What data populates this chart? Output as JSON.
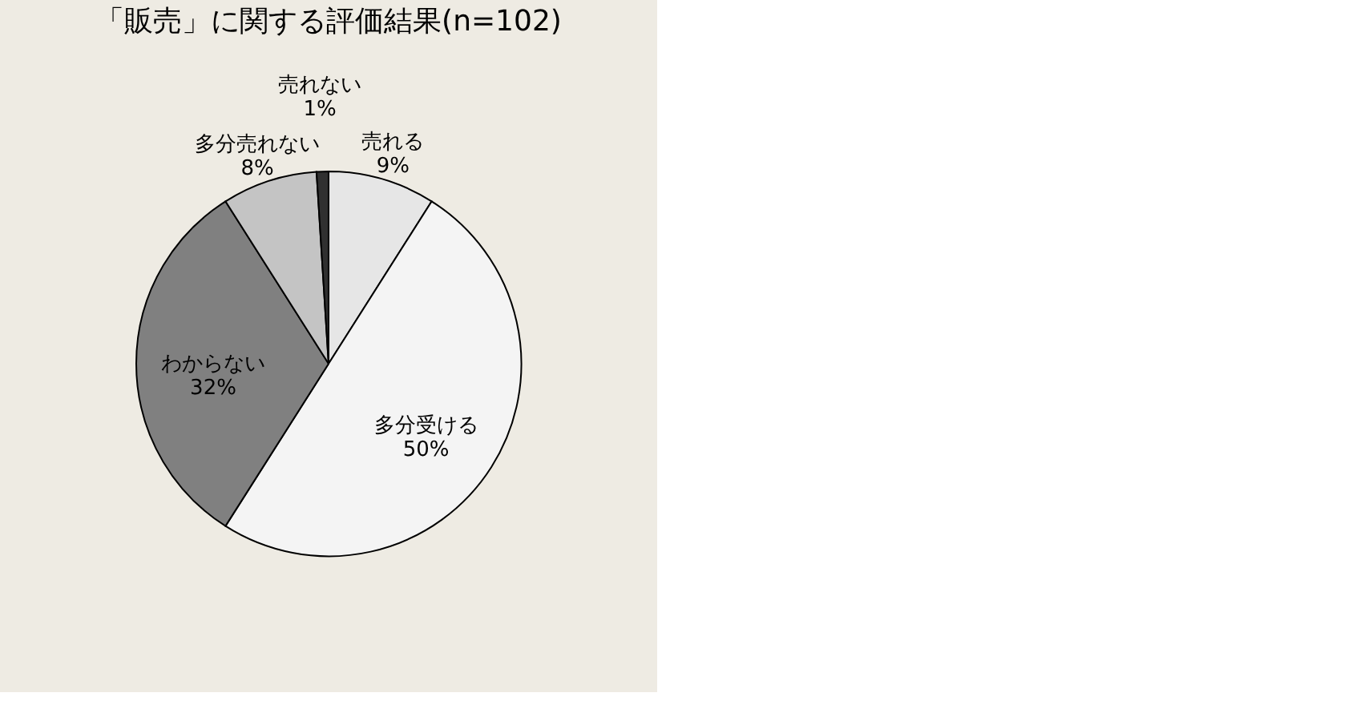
{
  "chart_data": {
    "type": "pie",
    "title": "「販売」に関する評価結果(n=102)",
    "categories": [
      "売れる",
      "多分受ける",
      "わからない",
      "多分売れない",
      "売れない"
    ],
    "values": [
      9,
      50,
      32,
      8,
      1
    ],
    "value_labels": [
      "9%",
      "50%",
      "32%",
      "8%",
      "1%"
    ],
    "colors": [
      "#e6e6e6",
      "#f4f4f4",
      "#808080",
      "#c4c4c4",
      "#303030"
    ],
    "legend": false
  }
}
